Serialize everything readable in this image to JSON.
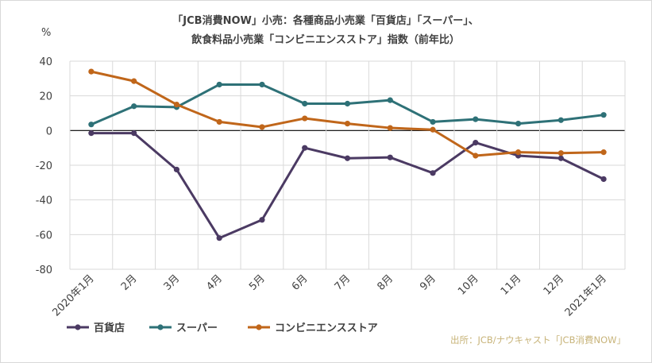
{
  "chart_data": {
    "type": "line",
    "title_line1": "「JCB消費NOW」小売：各種商品小売業「百貨店」「スーパー」、",
    "title_line2": "飲食料品小売業「コンビニエンスストア」指数（前年比）",
    "ylabel": "%",
    "ylim": [
      -80,
      40
    ],
    "yticks": [
      40,
      20,
      0,
      -20,
      -40,
      -60,
      -80
    ],
    "categories": [
      "2020年1月",
      "2月",
      "3月",
      "4月",
      "5月",
      "6月",
      "7月",
      "8月",
      "9月",
      "10月",
      "11月",
      "12月",
      "2021年1月"
    ],
    "series": [
      {
        "name": "百貨店",
        "color": "#4b3a63",
        "values": [
          -1.5,
          -1.5,
          -22.5,
          -62,
          -51.5,
          -10,
          -16,
          -15.5,
          -24.5,
          -7,
          -14.5,
          -16,
          -28
        ]
      },
      {
        "name": "スーパー",
        "color": "#2e7177",
        "values": [
          3.5,
          14,
          13.5,
          26.5,
          26.5,
          15.5,
          15.5,
          17.5,
          5,
          6.5,
          4,
          6,
          9
        ]
      },
      {
        "name": "コンビニエンスストア",
        "color": "#c0661a",
        "values": [
          34,
          28.5,
          15,
          5,
          2,
          7,
          4,
          1.5,
          0.5,
          -14.5,
          -12.5,
          -13,
          -12.5
        ]
      }
    ],
    "grid": true,
    "legend_position": "bottom-left",
    "source": "出所：JCB/ナウキャスト「JCB消費NOW」"
  }
}
